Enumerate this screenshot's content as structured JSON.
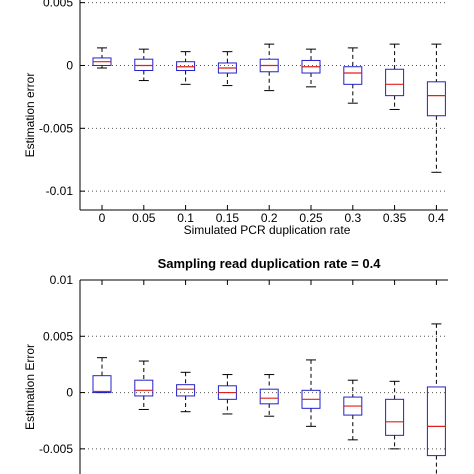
{
  "chart_data": [
    {
      "type": "box",
      "title": "",
      "xlabel": "Simulated PCR duplication rate",
      "ylabel": "Estimation error",
      "categories": [
        "0",
        "0.05",
        "0.1",
        "0.15",
        "0.2",
        "0.25",
        "0.3",
        "0.35",
        "0.4"
      ],
      "ylim": [
        -0.0115,
        0.0072
      ],
      "yticks": [
        0.005,
        0,
        -0.005,
        -0.01
      ],
      "ytick_labels": [
        "0.005",
        "0",
        "-0.005",
        "-0.01"
      ],
      "grid": "horizontal dotted",
      "boxes": [
        {
          "whisker_low": -0.0002,
          "q1": 0.0,
          "median": 0.0003,
          "q3": 0.0006,
          "whisker_high": 0.0014
        },
        {
          "whisker_low": -0.0012,
          "q1": -0.0004,
          "median": 0.0,
          "q3": 0.0005,
          "whisker_high": 0.0013
        },
        {
          "whisker_low": -0.0015,
          "q1": -0.0004,
          "median": -0.0001,
          "q3": 0.0003,
          "whisker_high": 0.0011
        },
        {
          "whisker_low": -0.0016,
          "q1": -0.0006,
          "median": -0.0002,
          "q3": 0.0002,
          "whisker_high": 0.0011
        },
        {
          "whisker_low": -0.002,
          "q1": -0.0005,
          "median": 0.0,
          "q3": 0.0005,
          "whisker_high": 0.0017
        },
        {
          "whisker_low": -0.0017,
          "q1": -0.0006,
          "median": -0.0001,
          "q3": 0.0004,
          "whisker_high": 0.0013
        },
        {
          "whisker_low": -0.003,
          "q1": -0.0015,
          "median": -0.0006,
          "q3": -0.0001,
          "whisker_high": 0.0014
        },
        {
          "whisker_low": -0.0035,
          "q1": -0.0024,
          "median": -0.0015,
          "q3": -0.0003,
          "whisker_high": 0.0017
        },
        {
          "whisker_low": -0.0085,
          "q1": -0.004,
          "median": -0.0024,
          "q3": -0.0013,
          "whisker_high": 0.0017
        }
      ]
    },
    {
      "type": "box",
      "title": "Sampling read duplication rate = 0.4",
      "xlabel": "",
      "ylabel": "Estimation Error",
      "categories": [
        "0",
        "0.05",
        "0.1",
        "0.15",
        "0.2",
        "0.25",
        "0.3",
        "0.35",
        "0.4"
      ],
      "ylim": [
        -0.0083,
        0.01
      ],
      "yticks": [
        0.01,
        0.005,
        0,
        -0.005
      ],
      "ytick_labels": [
        "0.01",
        "0.005",
        "0",
        "-0.005"
      ],
      "grid": "horizontal dotted",
      "boxes": [
        {
          "whisker_low": 0.0,
          "q1": 0.0,
          "median": 0.0001,
          "q3": 0.0015,
          "whisker_high": 0.0031
        },
        {
          "whisker_low": -0.0015,
          "q1": -0.0003,
          "median": 0.0002,
          "q3": 0.0011,
          "whisker_high": 0.0028
        },
        {
          "whisker_low": -0.0017,
          "q1": -0.0003,
          "median": 0.0003,
          "q3": 0.0007,
          "whisker_high": 0.0018
        },
        {
          "whisker_low": -0.0019,
          "q1": -0.0006,
          "median": 0.0,
          "q3": 0.0006,
          "whisker_high": 0.0016
        },
        {
          "whisker_low": -0.0021,
          "q1": -0.001,
          "median": -0.0005,
          "q3": 0.0003,
          "whisker_high": 0.0016
        },
        {
          "whisker_low": -0.003,
          "q1": -0.0014,
          "median": -0.0006,
          "q3": 0.0002,
          "whisker_high": 0.0029
        },
        {
          "whisker_low": -0.0042,
          "q1": -0.002,
          "median": -0.0012,
          "q3": -0.0004,
          "whisker_high": 0.0011
        },
        {
          "whisker_low": -0.005,
          "q1": -0.0038,
          "median": -0.0026,
          "q3": -0.0006,
          "whisker_high": 0.001
        },
        {
          "whisker_low": -0.009,
          "q1": -0.0056,
          "median": -0.003,
          "q3": 0.0005,
          "whisker_high": 0.0061
        }
      ]
    }
  ],
  "colors": {
    "box": "#2222cc",
    "median": "#e0201b",
    "whisker": "#000000",
    "grid": "#555555",
    "axis": "#000000"
  }
}
